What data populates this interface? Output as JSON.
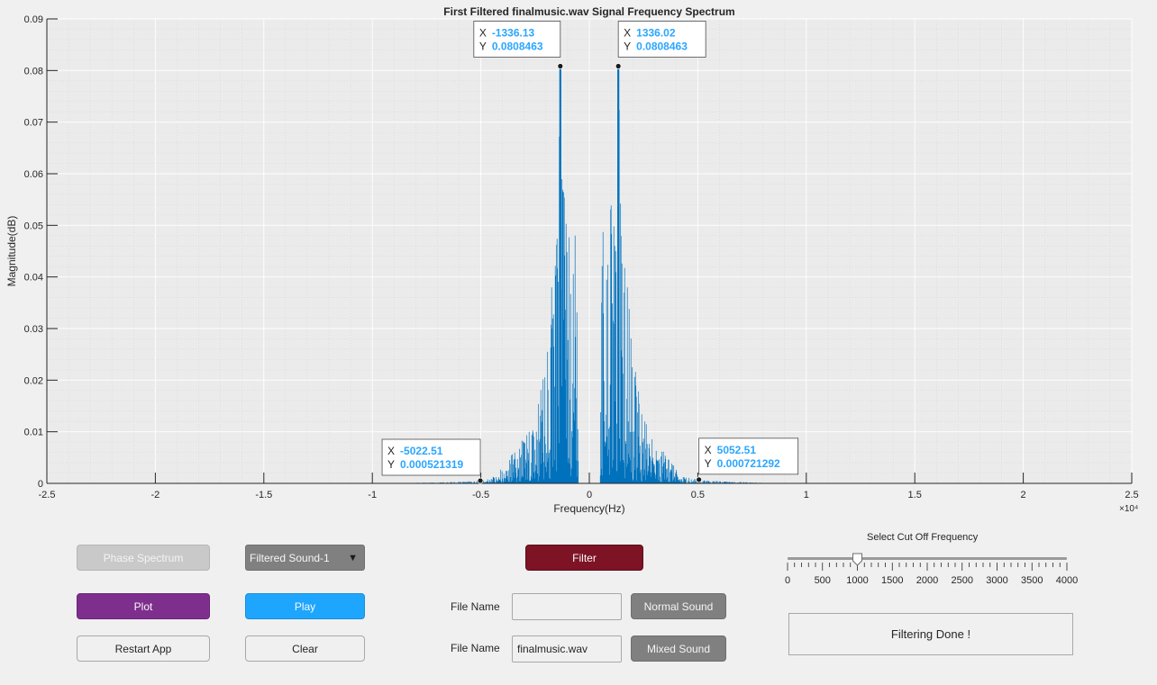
{
  "colors": {
    "plot_bg": "#ebebeb",
    "series": "#0072bd",
    "datatip_value": "#2ba6ff",
    "accent_filter": "#7e1326",
    "accent_plot": "#7e2f8e",
    "accent_play": "#1ea6ff",
    "disabled_gray": "#c9c9c9",
    "dark_gray": "#808080"
  },
  "chart_data": {
    "type": "line",
    "title": "First Filtered finalmusic.wav Signal Frequency Spectrum",
    "xlabel": "Frequency(Hz)",
    "ylabel": "Magnitude(dB)",
    "x_exponent_label": "×10⁴",
    "xlim": [
      -25000,
      25000
    ],
    "ylim": [
      0,
      0.09
    ],
    "grid": true,
    "minor_grid": true,
    "x_ticks": [
      -25000,
      -20000,
      -15000,
      -10000,
      -5000,
      0,
      5000,
      10000,
      15000,
      20000,
      25000
    ],
    "x_tick_labels": [
      "-2.5",
      "-2",
      "-1.5",
      "-1",
      "-0.5",
      "0",
      "0.5",
      "1",
      "1.5",
      "2",
      "2.5"
    ],
    "y_ticks": [
      0,
      0.01,
      0.02,
      0.03,
      0.04,
      0.05,
      0.06,
      0.07,
      0.08,
      0.09
    ],
    "y_tick_labels": [
      "0",
      "0.01",
      "0.02",
      "0.03",
      "0.04",
      "0.05",
      "0.06",
      "0.07",
      "0.08",
      "0.09"
    ],
    "series": [
      {
        "peaks": [
          {
            "x": -1336.13,
            "y": 0.0808463
          },
          {
            "x": 1336.02,
            "y": 0.0808463
          }
        ],
        "envelope": [
          {
            "x": -22000,
            "y": 0
          },
          {
            "x": -8000,
            "y": 0.0001
          },
          {
            "x": -6000,
            "y": 0.0003
          },
          {
            "x": -5022.51,
            "y": 0.000521319
          },
          {
            "x": -4500,
            "y": 0.001
          },
          {
            "x": -4000,
            "y": 0.003
          },
          {
            "x": -3500,
            "y": 0.006
          },
          {
            "x": -3000,
            "y": 0.009
          },
          {
            "x": -2500,
            "y": 0.013
          },
          {
            "x": -2200,
            "y": 0.02
          },
          {
            "x": -2000,
            "y": 0.026
          },
          {
            "x": -1800,
            "y": 0.038
          },
          {
            "x": -1500,
            "y": 0.05
          },
          {
            "x": -1336.13,
            "y": 0.0808463
          },
          {
            "x": -1200,
            "y": 0.06
          },
          {
            "x": -1000,
            "y": 0.055
          },
          {
            "x": -800,
            "y": 0.045
          },
          {
            "x": -600,
            "y": 0.05
          },
          {
            "x": -500,
            "y": 0
          },
          {
            "x": 500,
            "y": 0
          },
          {
            "x": 600,
            "y": 0.05
          },
          {
            "x": 800,
            "y": 0.045
          },
          {
            "x": 1000,
            "y": 0.055
          },
          {
            "x": 1200,
            "y": 0.06
          },
          {
            "x": 1336.02,
            "y": 0.0808463
          },
          {
            "x": 1500,
            "y": 0.05
          },
          {
            "x": 1800,
            "y": 0.038
          },
          {
            "x": 2000,
            "y": 0.026
          },
          {
            "x": 2200,
            "y": 0.02
          },
          {
            "x": 2500,
            "y": 0.013
          },
          {
            "x": 3000,
            "y": 0.009
          },
          {
            "x": 3500,
            "y": 0.006
          },
          {
            "x": 4000,
            "y": 0.003
          },
          {
            "x": 4500,
            "y": 0.0012
          },
          {
            "x": 5052.51,
            "y": 0.000721292
          },
          {
            "x": 6000,
            "y": 0.0004
          },
          {
            "x": 8000,
            "y": 0.0001
          },
          {
            "x": 22000,
            "y": 0
          }
        ]
      }
    ],
    "datatips": [
      {
        "x": -1336.13,
        "y": 0.0808463,
        "x_text": "-1336.13",
        "y_text": "0.0808463"
      },
      {
        "x": 1336.02,
        "y": 0.0808463,
        "x_text": "1336.02",
        "y_text": "0.0808463"
      },
      {
        "x": -5022.51,
        "y": 0.000521319,
        "x_text": "-5022.51",
        "y_text": "0.000521319"
      },
      {
        "x": 5052.51,
        "y": 0.000721292,
        "x_text": "5052.51",
        "y_text": "0.000721292"
      }
    ],
    "datatip_prefix_x": "X",
    "datatip_prefix_y": "Y"
  },
  "controls": {
    "phase_spectrum_label": "Phase Spectrum",
    "sound_select_value": "Filtered Sound-1",
    "filter_label": "Filter",
    "plot_label": "Plot",
    "play_label": "Play",
    "restart_label": "Restart App",
    "clear_label": "Clear",
    "file_name_label_1": "File Name",
    "file_name_label_2": "File Name",
    "file_name_value_1": "",
    "file_name_value_2": "finalmusic.wav",
    "normal_sound_label": "Normal Sound",
    "mixed_sound_label": "Mixed Sound",
    "slider_title": "Select Cut Off Frequency",
    "slider_value": 1000,
    "slider_min": 0,
    "slider_max": 4000,
    "slider_tick_labels": [
      "0",
      "500",
      "1000",
      "1500",
      "2000",
      "2500",
      "3000",
      "3500",
      "4000"
    ],
    "status_text": "Filtering Done !"
  }
}
